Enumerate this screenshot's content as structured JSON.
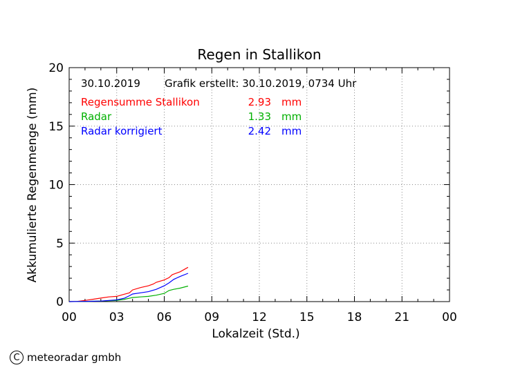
{
  "chart_data": {
    "type": "line",
    "title": "Regen in Stallikon",
    "xlabel": "Lokalzeit (Std.)",
    "ylabel": "Akkumulierte Regenmenge (mm)",
    "xlim": [
      0,
      24
    ],
    "ylim": [
      0,
      20
    ],
    "x_ticks": [
      "00",
      "03",
      "06",
      "09",
      "12",
      "15",
      "18",
      "21",
      "00"
    ],
    "y_ticks": [
      "0",
      "5",
      "10",
      "15",
      "20"
    ],
    "grid": true,
    "date": "30.10.2019",
    "created": "Grafik erstellt: 30.10.2019, 0734 Uhr",
    "unit": "mm",
    "series": [
      {
        "name": "Regensumme Stallikon",
        "total": "2.93",
        "color": "#ff0000",
        "x": [
          0.0,
          0.5,
          1.0,
          1.5,
          2.0,
          2.5,
          3.0,
          3.4,
          3.8,
          4.0,
          4.5,
          5.0,
          5.3,
          5.5,
          6.0,
          6.3,
          6.5,
          7.0,
          7.5
        ],
        "y": [
          0.0,
          0.02,
          0.1,
          0.2,
          0.3,
          0.4,
          0.45,
          0.6,
          0.75,
          1.0,
          1.2,
          1.35,
          1.5,
          1.65,
          1.85,
          2.05,
          2.3,
          2.55,
          2.93
        ]
      },
      {
        "name": "Radar",
        "total": "1.33",
        "color": "#00b000",
        "x": [
          0.0,
          1.0,
          2.0,
          3.0,
          3.5,
          4.0,
          4.5,
          5.0,
          5.5,
          6.0,
          6.3,
          6.6,
          7.0,
          7.5
        ],
        "y": [
          0.0,
          0.02,
          0.05,
          0.1,
          0.2,
          0.35,
          0.4,
          0.45,
          0.55,
          0.7,
          0.95,
          1.05,
          1.15,
          1.33
        ]
      },
      {
        "name": "Radar korrigiert",
        "total": "2.42",
        "color": "#0000ff",
        "x": [
          0.0,
          1.0,
          2.0,
          3.0,
          3.5,
          3.8,
          4.0,
          4.5,
          5.0,
          5.5,
          6.0,
          6.3,
          6.6,
          7.0,
          7.5
        ],
        "y": [
          0.0,
          0.02,
          0.05,
          0.15,
          0.3,
          0.5,
          0.65,
          0.75,
          0.85,
          1.05,
          1.35,
          1.6,
          1.9,
          2.15,
          2.42
        ]
      }
    ]
  },
  "footer": {
    "copyright_symbol": "C",
    "company": "meteoradar gmbh"
  }
}
